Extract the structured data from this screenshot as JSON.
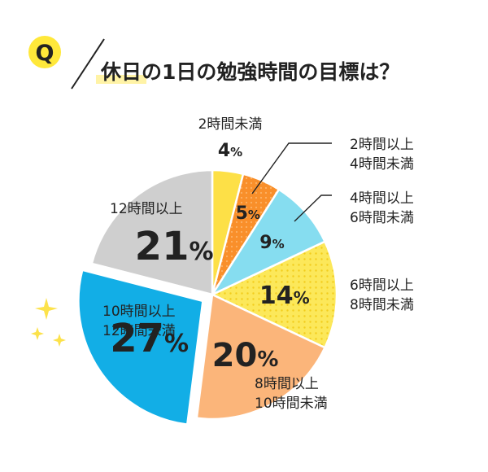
{
  "question": {
    "badge": "Q",
    "title": "休日の1日の勉強時間の目標は？"
  },
  "colors": {
    "yellow": "#fde047",
    "orange": "#f98f2a",
    "lightblue": "#86ddf0",
    "yellow_dot": "#fce85a",
    "peach": "#fbb57a",
    "blue": "#12aee6",
    "gray": "#cfcfcf",
    "highlight": "#fff3a6",
    "badge": "#ffe83a"
  },
  "chart_data": {
    "type": "pie",
    "title": "休日の1日の勉強時間の目標は？",
    "unit": "%",
    "start_angle": "12 o'clock",
    "direction": "clockwise",
    "exploded": "10時間以上12時間未満",
    "slices": [
      {
        "label": [
          "2時間未満"
        ],
        "value": 4,
        "color": "#fde047",
        "pattern": "none"
      },
      {
        "label": [
          "2時間以上",
          "4時間未満"
        ],
        "value": 5,
        "color": "#f98f2a",
        "pattern": "dots"
      },
      {
        "label": [
          "4時間以上",
          "6時間未満"
        ],
        "value": 9,
        "color": "#86ddf0",
        "pattern": "none"
      },
      {
        "label": [
          "6時間以上",
          "8時間未満"
        ],
        "value": 14,
        "color": "#fce85a",
        "pattern": "dots"
      },
      {
        "label": [
          "8時間以上",
          "10時間未満"
        ],
        "value": 20,
        "color": "#fbb57a",
        "pattern": "none"
      },
      {
        "label": [
          "10時間以上",
          "12時間未満"
        ],
        "value": 27,
        "color": "#12aee6",
        "pattern": "none"
      },
      {
        "label": [
          "12時間以上"
        ],
        "value": 21,
        "color": "#cfcfcf",
        "pattern": "none"
      }
    ]
  }
}
